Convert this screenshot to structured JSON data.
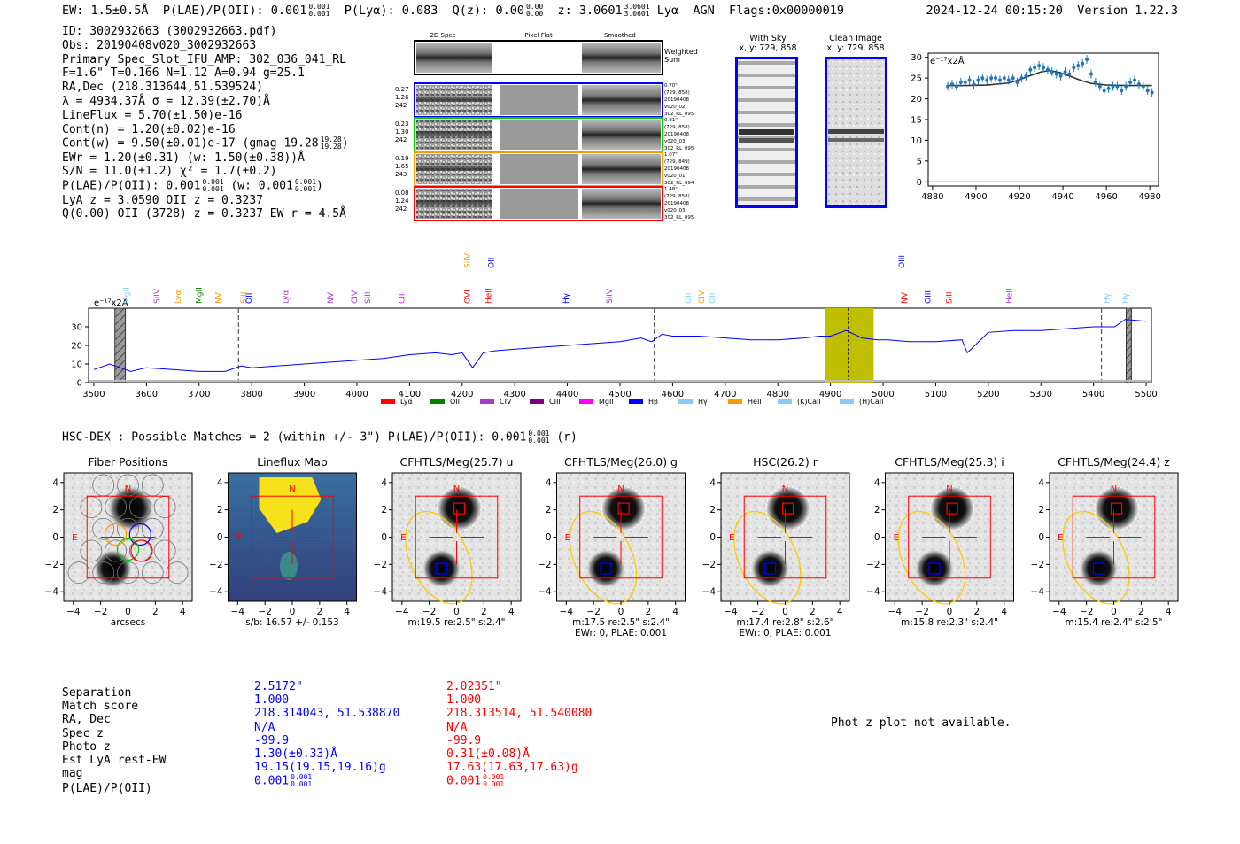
{
  "header": {
    "ew": "EW: 1.5±0.5Å",
    "plae": "P(LAE)/P(OII): 0.001",
    "plae_sup": "0.001",
    "plae_sub": "0.001",
    "plya": "P(Lyα): 0.083",
    "qz": "Q(z): 0.00",
    "qz_sup": "0.00",
    "qz_sub": "0.00",
    "z": "z: 3.0601",
    "z_sup": "3.0601",
    "z_sub": "3.0601",
    "lya": "Lyα",
    "agn": "AGN",
    "flags": "Flags:0x00000019",
    "timestamp": "2024-12-24 00:15:20",
    "version": "Version 1.22.3"
  },
  "info": {
    "id": "ID: 3002932663 (3002932663.pdf)",
    "obs": "Obs: 20190408v020_3002932663",
    "primary": "Primary Spec_Slot_IFU_AMP: 302_036_041_RL",
    "fwhm": "F=1.6\"  T=0.166  N=1.12  A=0.94  g=25.1",
    "radec": "RA,Dec (218.313644,51.539524)",
    "lambda": "λ = 4934.37Å  σ = 12.39(±2.70)Å",
    "lineflux": "LineFlux = 5.70(±1.50)e-16",
    "contn": "Cont(n) = 1.20(±0.02)e-16",
    "contw": "Cont(w) = 9.50(±0.01)e-17 (gmag 19.28",
    "contw_sup": "19.28",
    "contw_sub": "19.28",
    "contw_end": ")",
    "ewr": "EWr = 1.20(±0.31) (w: 1.50(±0.38))Å",
    "sn": "S/N = 11.0(±1.2)  χ² = 1.7(±0.2)",
    "plae": "P(LAE)/P(OII): 0.001",
    "plae_sup": "0.001",
    "plae_sub": "0.001",
    "plae_w": "(w: 0.001",
    "plae_w_sup": "0.001",
    "plae_w_sub": "0.001",
    "plae_w_end": ")",
    "lyaz": "LyA z = 3.0590  OII z = 0.3237",
    "qoii": "Q(0.00) OII (3728) z = 0.3237  EW r = 4.5Å"
  },
  "cutouts": {
    "headers": [
      "2D Spec",
      "Pixel Flat",
      "Smoothed"
    ],
    "weighted": [
      "Weighted",
      "Sum"
    ],
    "rows": [
      {
        "left": [
          "0.27",
          "1.26",
          "242"
        ],
        "right": [
          "0.70\"",
          "(729, 858)",
          "20190408",
          "v020_02",
          "302_RL_095"
        ],
        "color": "#0000ff"
      },
      {
        "left": [
          "0.23",
          "1.30",
          "242"
        ],
        "right": [
          "0.81\"",
          "(729, 858)",
          "20190408",
          "v020_03",
          "302_RL_095"
        ],
        "color": "#00cc00"
      },
      {
        "left": [
          "0.19",
          "1.65",
          "243"
        ],
        "right": [
          "1.07\"",
          "(729, 849)",
          "20190408",
          "v020_01",
          "302_RL_094"
        ],
        "color": "#ff9900"
      },
      {
        "left": [
          "0.08",
          "1.24",
          "242"
        ],
        "right": [
          "1.48\"",
          "(729, 858)",
          "20190408",
          "v020_03",
          "302_RL_095"
        ],
        "color": "#ff0000"
      }
    ],
    "with_sky": [
      "With Sky",
      "x, y: 729, 858"
    ],
    "clean": [
      "Clean Image",
      "x, y: 729, 858"
    ]
  },
  "chart_data": [
    {
      "type": "line",
      "title": "",
      "ylabel": "e⁻¹⁷x2Å",
      "xlim": [
        4878,
        4984
      ],
      "ylim": [
        -1,
        31
      ],
      "xticks": [
        "4880",
        "4900",
        "4920",
        "4940",
        "4960",
        "4980"
      ],
      "yticks": [
        "0",
        "5",
        "10",
        "15",
        "20",
        "25",
        "30"
      ],
      "series": [
        {
          "name": "data",
          "x": [
            4887,
            4889,
            4891,
            4893,
            4895,
            4897,
            4899,
            4901,
            4903,
            4905,
            4907,
            4909,
            4911,
            4913,
            4915,
            4917,
            4919,
            4921,
            4923,
            4925,
            4927,
            4929,
            4931,
            4933,
            4935,
            4937,
            4939,
            4941,
            4943,
            4945,
            4947,
            4949,
            4951,
            4953,
            4955,
            4957,
            4959,
            4961,
            4963,
            4965,
            4967,
            4969,
            4971,
            4973,
            4975,
            4977,
            4979,
            4981
          ],
          "values": [
            23,
            23.5,
            23,
            24,
            24,
            24.5,
            23.5,
            24.5,
            25,
            24.5,
            25,
            25,
            24.5,
            25,
            24.5,
            25,
            24,
            25,
            25.5,
            27,
            27.5,
            28,
            27.5,
            27,
            26.5,
            26,
            25.5,
            26.5,
            26,
            27.5,
            28,
            28.5,
            29.5,
            26,
            24,
            23,
            22,
            22.5,
            23,
            23,
            22,
            23,
            24,
            24.5,
            23.5,
            23,
            22,
            21.5
          ]
        },
        {
          "name": "model",
          "x": [
            4887,
            4895,
            4905,
            4915,
            4920,
            4925,
            4930,
            4934,
            4938,
            4943,
            4948,
            4953,
            4960,
            4970,
            4981
          ],
          "values": [
            23.2,
            23.2,
            23.3,
            23.8,
            24.6,
            25.6,
            26.5,
            26.8,
            26.4,
            25.5,
            24.5,
            23.7,
            23.3,
            23.2,
            23.2
          ]
        }
      ]
    },
    {
      "type": "line",
      "ylabel": "e⁻¹⁷x2Å",
      "xlim": [
        3490,
        5510
      ],
      "ylim": [
        0,
        40
      ],
      "xticks": [
        "3500",
        "3600",
        "3700",
        "3800",
        "3900",
        "4000",
        "4100",
        "4200",
        "4300",
        "4400",
        "4500",
        "4600",
        "4700",
        "4800",
        "4900",
        "5000",
        "5100",
        "5200",
        "5300",
        "5400",
        "5500"
      ],
      "yticks": [
        "0",
        "10",
        "20",
        "30"
      ],
      "series": [
        {
          "name": "spectrum",
          "x": [
            3500,
            3530,
            3550,
            3570,
            3600,
            3650,
            3700,
            3750,
            3780,
            3800,
            3850,
            3900,
            3950,
            4000,
            4050,
            4100,
            4150,
            4180,
            4200,
            4220,
            4240,
            4260,
            4300,
            4350,
            4400,
            4450,
            4500,
            4540,
            4560,
            4580,
            4600,
            4650,
            4700,
            4750,
            4800,
            4850,
            4880,
            4900,
            4930,
            4960,
            4990,
            5010,
            5050,
            5100,
            5150,
            5160,
            5200,
            5250,
            5300,
            5350,
            5400,
            5440,
            5460,
            5500
          ],
          "values": [
            7,
            10,
            8,
            6,
            8,
            7,
            6,
            6,
            9,
            8,
            9,
            10,
            11,
            12,
            13,
            15,
            16,
            15,
            16,
            8,
            16,
            17,
            18,
            19,
            20,
            21,
            22,
            24,
            22,
            26,
            25,
            25,
            24,
            23,
            23,
            24,
            25,
            25,
            28,
            24,
            23,
            23,
            22,
            22,
            23,
            16,
            27,
            28,
            28,
            29,
            30,
            30,
            34,
            33
          ]
        }
      ],
      "dashed_lines_x": [
        3775,
        4565,
        5415
      ],
      "highlight_band": [
        4890,
        4982
      ],
      "highlight_center": 4934,
      "hatch_bands": [
        [
          3540,
          3560
        ],
        [
          5462,
          5472
        ]
      ],
      "line_labels_low": [
        "MgII",
        "SiIV",
        "Lyα",
        "MgII",
        "NV",
        "SiII",
        "OII",
        "Lyα",
        "NV",
        "CIV",
        "SiII",
        "CII",
        "OVI",
        "HeII",
        "Hγ",
        "SiIV",
        "OII",
        "CIV",
        "OII",
        "NV",
        "OIII",
        "SiII",
        "HeII",
        "Hγ",
        "Hγ"
      ],
      "line_labels_high": [
        "SiIV",
        "OII",
        "OIII"
      ],
      "legend": [
        "Lyα",
        "OII",
        "CIV",
        "CIII",
        "MgII",
        "Hβ",
        "Hγ",
        "HeII",
        "(K)CaII",
        "(H)CaII"
      ]
    }
  ],
  "match_title": "HSC-DEX : Possible Matches = 2 (within +/- 3\")  P(LAE)/P(OII): 0.001",
  "match_title_sup": "0.001",
  "match_title_sub": "0.001",
  "match_title_end": "(r)",
  "panels": [
    {
      "title": "Fiber Positions",
      "cap1": "arcsecs",
      "cap2": ""
    },
    {
      "title": "Lineflux Map",
      "cap1": "s/b: 16.57 +/- 0.153",
      "cap2": ""
    },
    {
      "title": "CFHTLS/Meg(25.7) u",
      "cap1": "m:19.5  re:2.5\"  s:2.4\"",
      "cap2": ""
    },
    {
      "title": "CFHTLS/Meg(26.0) g",
      "cap1": "m:17.5  re:2.5\"  s:2.4\"",
      "cap2": "EWr: 0, PLAE: 0.001"
    },
    {
      "title": "HSC(26.2) r",
      "cap1": "m:17.4  re:2.8\"  s:2.6\"",
      "cap2": "EWr: 0, PLAE: 0.001"
    },
    {
      "title": "CFHTLS/Meg(25.3) i",
      "cap1": "m:15.8  re:2.3\"  s:2.4\"",
      "cap2": ""
    },
    {
      "title": "CFHTLS/Meg(24.4) z",
      "cap1": "m:15.4  re:2.4\"  s:2.5\"",
      "cap2": ""
    }
  ],
  "panel_axis": {
    "ticks": [
      "−4",
      "−2",
      "0",
      "2",
      "4"
    ],
    "north": "N",
    "east": "E"
  },
  "match_table": {
    "labels": [
      "Separation",
      "Match score",
      "RA, Dec",
      "Spec z",
      "Photo z",
      "Est LyA rest-EW",
      "mag",
      "P(LAE)/P(OII)"
    ],
    "blue": [
      "2.5172\"",
      "1.000",
      "218.314043, 51.538870",
      "N/A",
      "-99.9",
      "1.30(±0.33)Å",
      "19.15(19.15,19.16)g",
      "0.001"
    ],
    "blue_sup": "0.001",
    "blue_sub": "0.001",
    "red": [
      "2.02351\"",
      "1.000",
      "218.313514, 51.540080",
      "N/A",
      "-99.9",
      "0.31(±0.08)Å",
      "17.63(17.63,17.63)g",
      "0.001"
    ],
    "red_sup": "0.001",
    "red_sub": "0.001"
  },
  "photz_msg": "Phot z plot not available.",
  "colors": {
    "blue": "#0000ff",
    "red": "#ff0000",
    "olive": "#bfbf00",
    "gold": "#ffcc00"
  }
}
